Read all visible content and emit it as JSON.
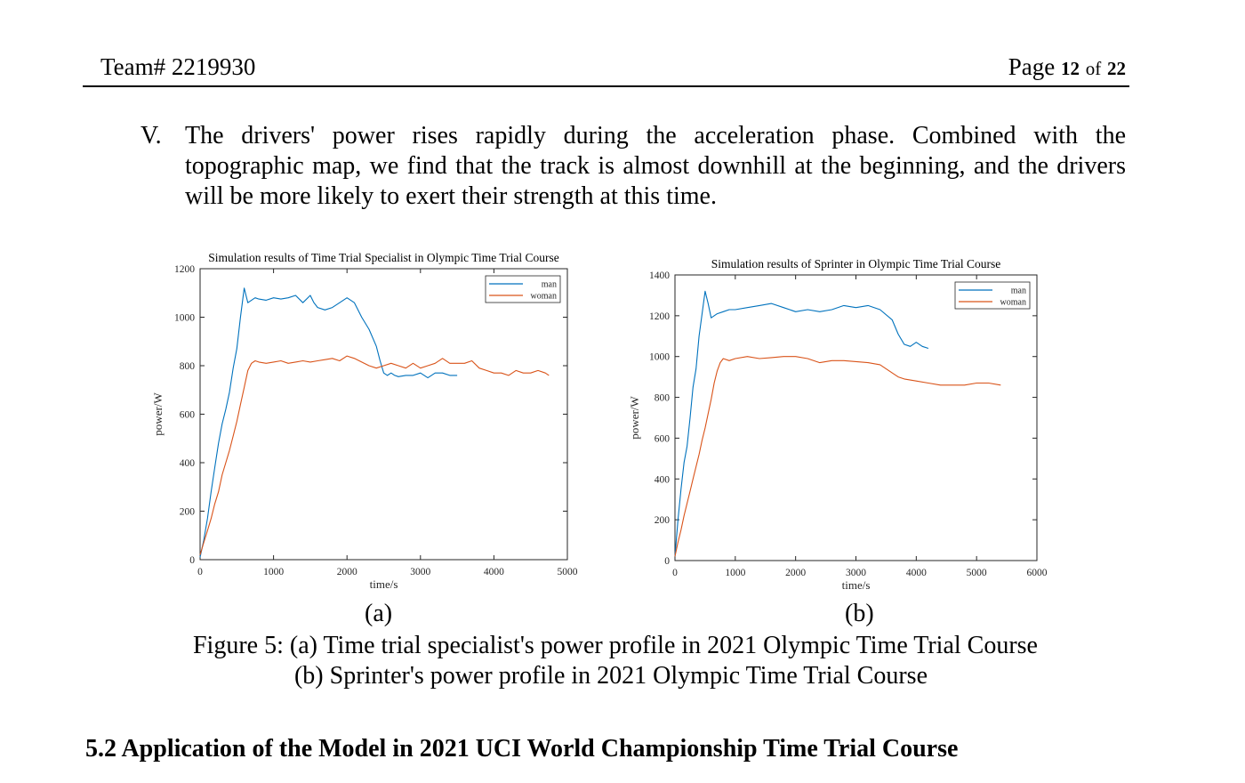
{
  "header": {
    "team": "Team# 2219930",
    "page_word": "Page",
    "page_num": "12",
    "of_word": "of",
    "page_total": "22"
  },
  "item": {
    "numeral": "V.",
    "text": "The drivers' power rises rapidly during the acceleration phase. Combined with the topographic map, we find that the track is almost downhill at the beginning, and the drivers will be more likely to exert their strength at this time."
  },
  "figure": {
    "sub_a": "(a)",
    "sub_b": "(b)",
    "caption_line1": "Figure 5: (a) Time trial specialist's power profile in 2021 Olympic Time Trial Course",
    "caption_line2": "(b) Sprinter's power profile in 2021 Olympic Time Trial Course"
  },
  "section_heading": "5.2 Application of the Model in 2021 UCI World Championship Time Trial Course",
  "colors": {
    "man": "#0072BD",
    "woman": "#D95319"
  },
  "chart_data": [
    {
      "type": "line",
      "title": "Simulation results of Time Trial Specialist in Olympic Time Trial Course",
      "xlabel": "time/s",
      "ylabel": "power/W",
      "xlim": [
        0,
        5000
      ],
      "ylim": [
        0,
        1200
      ],
      "xticks": [
        0,
        1000,
        2000,
        3000,
        4000,
        5000
      ],
      "yticks": [
        0,
        200,
        400,
        600,
        800,
        1000,
        1200
      ],
      "legend_position": "top-right",
      "series": [
        {
          "name": "man",
          "x": [
            0,
            50,
            100,
            150,
            200,
            250,
            300,
            350,
            400,
            450,
            500,
            550,
            600,
            650,
            700,
            750,
            800,
            900,
            1000,
            1100,
            1200,
            1300,
            1400,
            1500,
            1550,
            1600,
            1700,
            1800,
            1900,
            2000,
            2100,
            2200,
            2300,
            2400,
            2450,
            2500,
            2550,
            2600,
            2650,
            2700,
            2800,
            2900,
            3000,
            3100,
            3200,
            3300,
            3400,
            3500
          ],
          "y": [
            10,
            80,
            170,
            280,
            380,
            480,
            560,
            620,
            690,
            790,
            870,
            1000,
            1120,
            1060,
            1070,
            1080,
            1075,
            1070,
            1080,
            1075,
            1080,
            1090,
            1060,
            1090,
            1060,
            1040,
            1030,
            1040,
            1060,
            1080,
            1060,
            1000,
            950,
            880,
            820,
            770,
            760,
            770,
            760,
            755,
            760,
            760,
            770,
            750,
            770,
            770,
            760,
            760
          ]
        },
        {
          "name": "woman",
          "x": [
            0,
            50,
            100,
            150,
            200,
            250,
            300,
            350,
            400,
            450,
            500,
            550,
            600,
            650,
            700,
            750,
            800,
            900,
            1000,
            1100,
            1200,
            1300,
            1400,
            1500,
            1600,
            1700,
            1800,
            1900,
            2000,
            2100,
            2200,
            2300,
            2400,
            2500,
            2600,
            2700,
            2800,
            2900,
            3000,
            3100,
            3200,
            3300,
            3400,
            3500,
            3600,
            3700,
            3800,
            3900,
            4000,
            4100,
            4200,
            4300,
            4400,
            4500,
            4600,
            4700,
            4750
          ],
          "y": [
            20,
            70,
            120,
            170,
            230,
            280,
            350,
            400,
            450,
            510,
            570,
            640,
            710,
            780,
            810,
            820,
            815,
            810,
            815,
            820,
            810,
            815,
            820,
            815,
            820,
            825,
            830,
            820,
            840,
            830,
            815,
            800,
            790,
            800,
            810,
            800,
            790,
            810,
            790,
            800,
            810,
            830,
            810,
            810,
            810,
            820,
            790,
            780,
            770,
            770,
            760,
            780,
            770,
            770,
            780,
            770,
            760
          ]
        }
      ]
    },
    {
      "type": "line",
      "title": "Simulation results of Sprinter in Olympic Time Trial Course",
      "xlabel": "time/s",
      "ylabel": "power/W",
      "xlim": [
        0,
        6000
      ],
      "ylim": [
        0,
        1400
      ],
      "xticks": [
        0,
        1000,
        2000,
        3000,
        4000,
        5000,
        6000
      ],
      "yticks": [
        0,
        200,
        400,
        600,
        800,
        1000,
        1200,
        1400
      ],
      "legend_position": "top-right",
      "series": [
        {
          "name": "man",
          "x": [
            0,
            50,
            100,
            150,
            200,
            250,
            300,
            350,
            400,
            450,
            500,
            550,
            600,
            700,
            800,
            900,
            1000,
            1200,
            1400,
            1600,
            1800,
            2000,
            2200,
            2400,
            2600,
            2800,
            3000,
            3200,
            3400,
            3600,
            3700,
            3800,
            3900,
            4000,
            4100,
            4200
          ],
          "y": [
            20,
            200,
            350,
            480,
            560,
            700,
            850,
            940,
            1100,
            1210,
            1320,
            1260,
            1190,
            1210,
            1220,
            1230,
            1230,
            1240,
            1250,
            1260,
            1240,
            1220,
            1230,
            1220,
            1230,
            1250,
            1240,
            1250,
            1230,
            1180,
            1110,
            1060,
            1050,
            1070,
            1050,
            1040
          ]
        },
        {
          "name": "woman",
          "x": [
            0,
            50,
            100,
            150,
            200,
            250,
            300,
            350,
            400,
            450,
            500,
            550,
            600,
            650,
            700,
            750,
            800,
            900,
            1000,
            1200,
            1400,
            1600,
            1800,
            2000,
            2200,
            2400,
            2600,
            2800,
            3000,
            3200,
            3400,
            3600,
            3700,
            3800,
            4000,
            4200,
            4400,
            4600,
            4800,
            5000,
            5200,
            5400
          ],
          "y": [
            20,
            90,
            150,
            220,
            280,
            340,
            400,
            460,
            520,
            590,
            650,
            720,
            790,
            870,
            930,
            970,
            990,
            980,
            990,
            1000,
            990,
            995,
            1000,
            1000,
            990,
            970,
            980,
            980,
            975,
            970,
            960,
            920,
            900,
            890,
            880,
            870,
            860,
            860,
            860,
            870,
            870,
            860
          ]
        }
      ]
    }
  ]
}
